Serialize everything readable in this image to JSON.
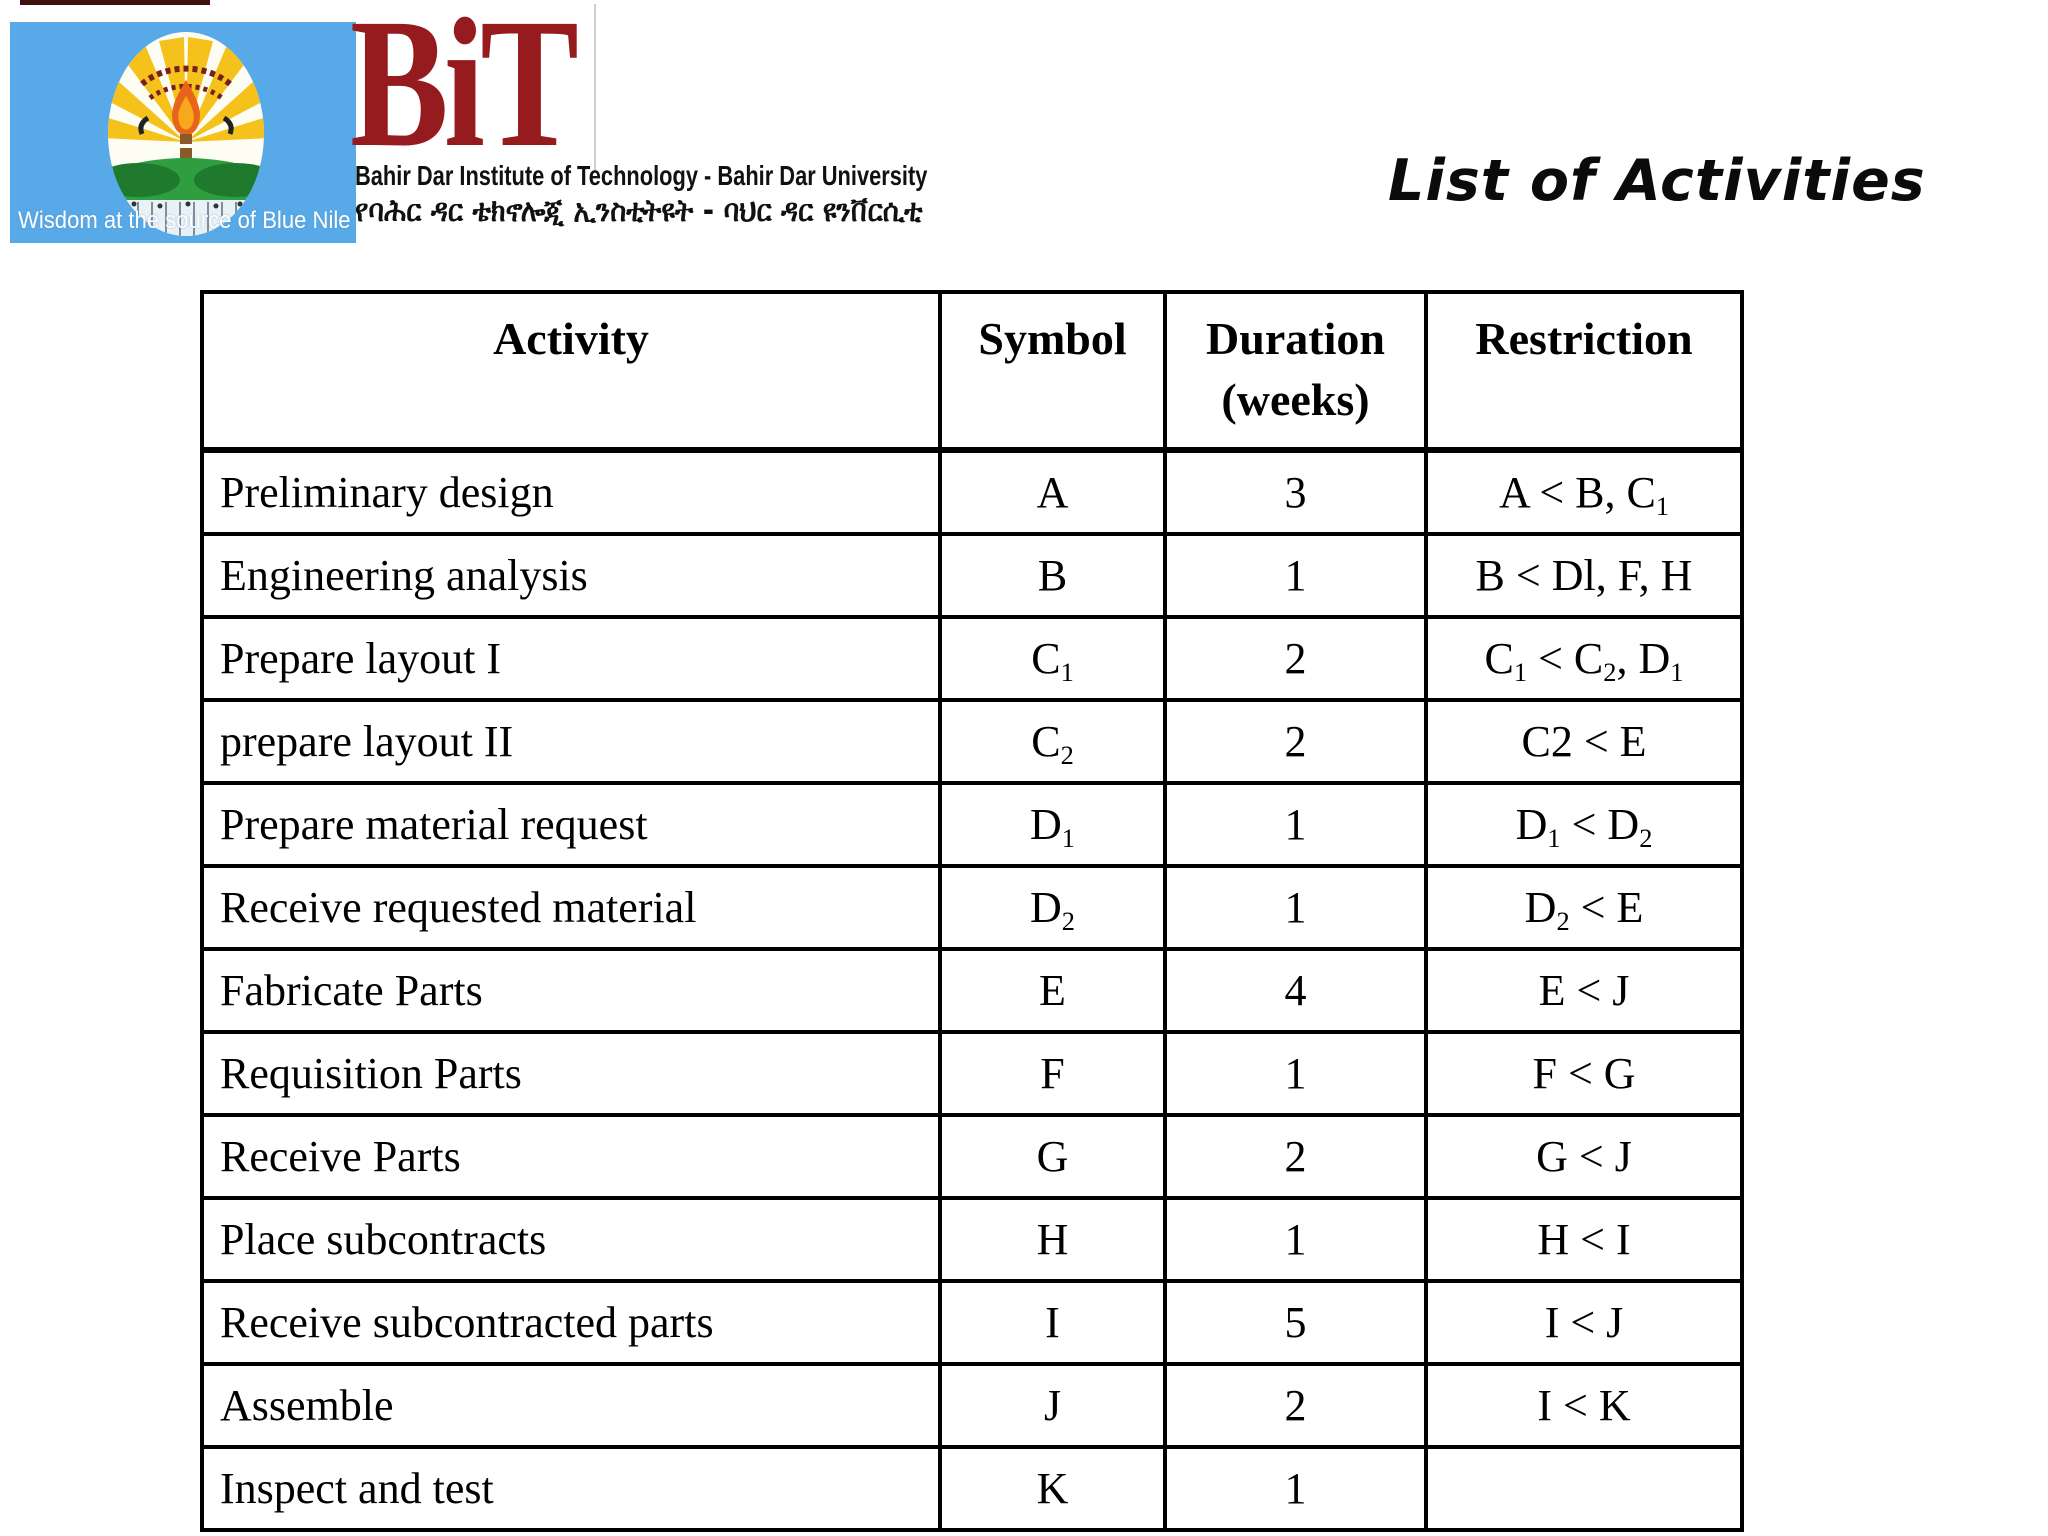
{
  "logo": {
    "motto": "Wisdom at the source of Blue Nile",
    "acronym": "BiT",
    "institute_en": "Bahir Dar Institute of Technology - Bahir Dar University",
    "institute_am": "የባሕር ዳር ቴክኖሎጂ ኢንስቲትዩት - ባህር ዳር ዩንቨርሲቲ"
  },
  "slide": {
    "title": "List of Activities"
  },
  "colors": {
    "logo_blue": "#58a9e8",
    "bit_red": "#951b1e",
    "seal_yellow": "#f4c21a",
    "seal_green": "#2e9e40",
    "flame_orange": "#e8641b"
  },
  "table": {
    "columns": {
      "activity": "Activity",
      "symbol": "Symbol",
      "duration": "Duration",
      "duration_unit": "(weeks)",
      "restriction": "Restriction"
    },
    "rows": [
      {
        "activity": "Preliminary design",
        "symbol": [
          {
            "t": "A"
          }
        ],
        "duration": "3",
        "restriction": [
          {
            "t": "A < B, C"
          },
          {
            "sub": "1"
          }
        ]
      },
      {
        "activity": "Engineering analysis",
        "symbol": [
          {
            "t": "B"
          }
        ],
        "duration": "1",
        "restriction": [
          {
            "t": "B < Dl, F, H"
          }
        ]
      },
      {
        "activity": "Prepare layout I",
        "symbol": [
          {
            "t": "C"
          },
          {
            "sub": "1"
          }
        ],
        "duration": "2",
        "restriction": [
          {
            "t": "C"
          },
          {
            "sub": "1"
          },
          {
            "t": " < C"
          },
          {
            "sub": "2"
          },
          {
            "t": ", D"
          },
          {
            "sub": "1"
          }
        ]
      },
      {
        "activity": "prepare layout II",
        "symbol": [
          {
            "t": "C"
          },
          {
            "sub": "2"
          }
        ],
        "duration": "2",
        "restriction": [
          {
            "t": "C2 < E"
          }
        ]
      },
      {
        "activity": "Prepare material request",
        "symbol": [
          {
            "t": "D"
          },
          {
            "sub": "1"
          }
        ],
        "duration": "1",
        "restriction": [
          {
            "t": "D"
          },
          {
            "sub": "1"
          },
          {
            "t": " < D"
          },
          {
            "sub": "2"
          }
        ]
      },
      {
        "activity": "Receive requested material",
        "symbol": [
          {
            "t": "D"
          },
          {
            "sub": "2"
          }
        ],
        "duration": "1",
        "restriction": [
          {
            "t": "D"
          },
          {
            "sub": "2"
          },
          {
            "t": " < E"
          }
        ]
      },
      {
        "activity": "Fabricate Parts",
        "symbol": [
          {
            "t": "E"
          }
        ],
        "duration": "4",
        "restriction": [
          {
            "t": "E < J"
          }
        ]
      },
      {
        "activity": "Requisition Parts",
        "symbol": [
          {
            "t": "F"
          }
        ],
        "duration": "1",
        "restriction": [
          {
            "t": "F < G"
          }
        ]
      },
      {
        "activity": "Receive Parts",
        "symbol": [
          {
            "t": "G"
          }
        ],
        "duration": "2",
        "restriction": [
          {
            "t": "G < J"
          }
        ]
      },
      {
        "activity": "Place subcontracts",
        "symbol": [
          {
            "t": "H"
          }
        ],
        "duration": "1",
        "restriction": [
          {
            "t": "H < I"
          }
        ]
      },
      {
        "activity": "Receive subcontracted parts",
        "symbol": [
          {
            "t": "I"
          }
        ],
        "duration": "5",
        "restriction": [
          {
            "t": "I < J"
          }
        ]
      },
      {
        "activity": "Assemble",
        "symbol": [
          {
            "t": "J"
          }
        ],
        "duration": "2",
        "restriction": [
          {
            "t": "I < K"
          }
        ]
      },
      {
        "activity": "Inspect and test",
        "symbol": [
          {
            "t": "K"
          }
        ],
        "duration": "1",
        "restriction": []
      }
    ]
  }
}
